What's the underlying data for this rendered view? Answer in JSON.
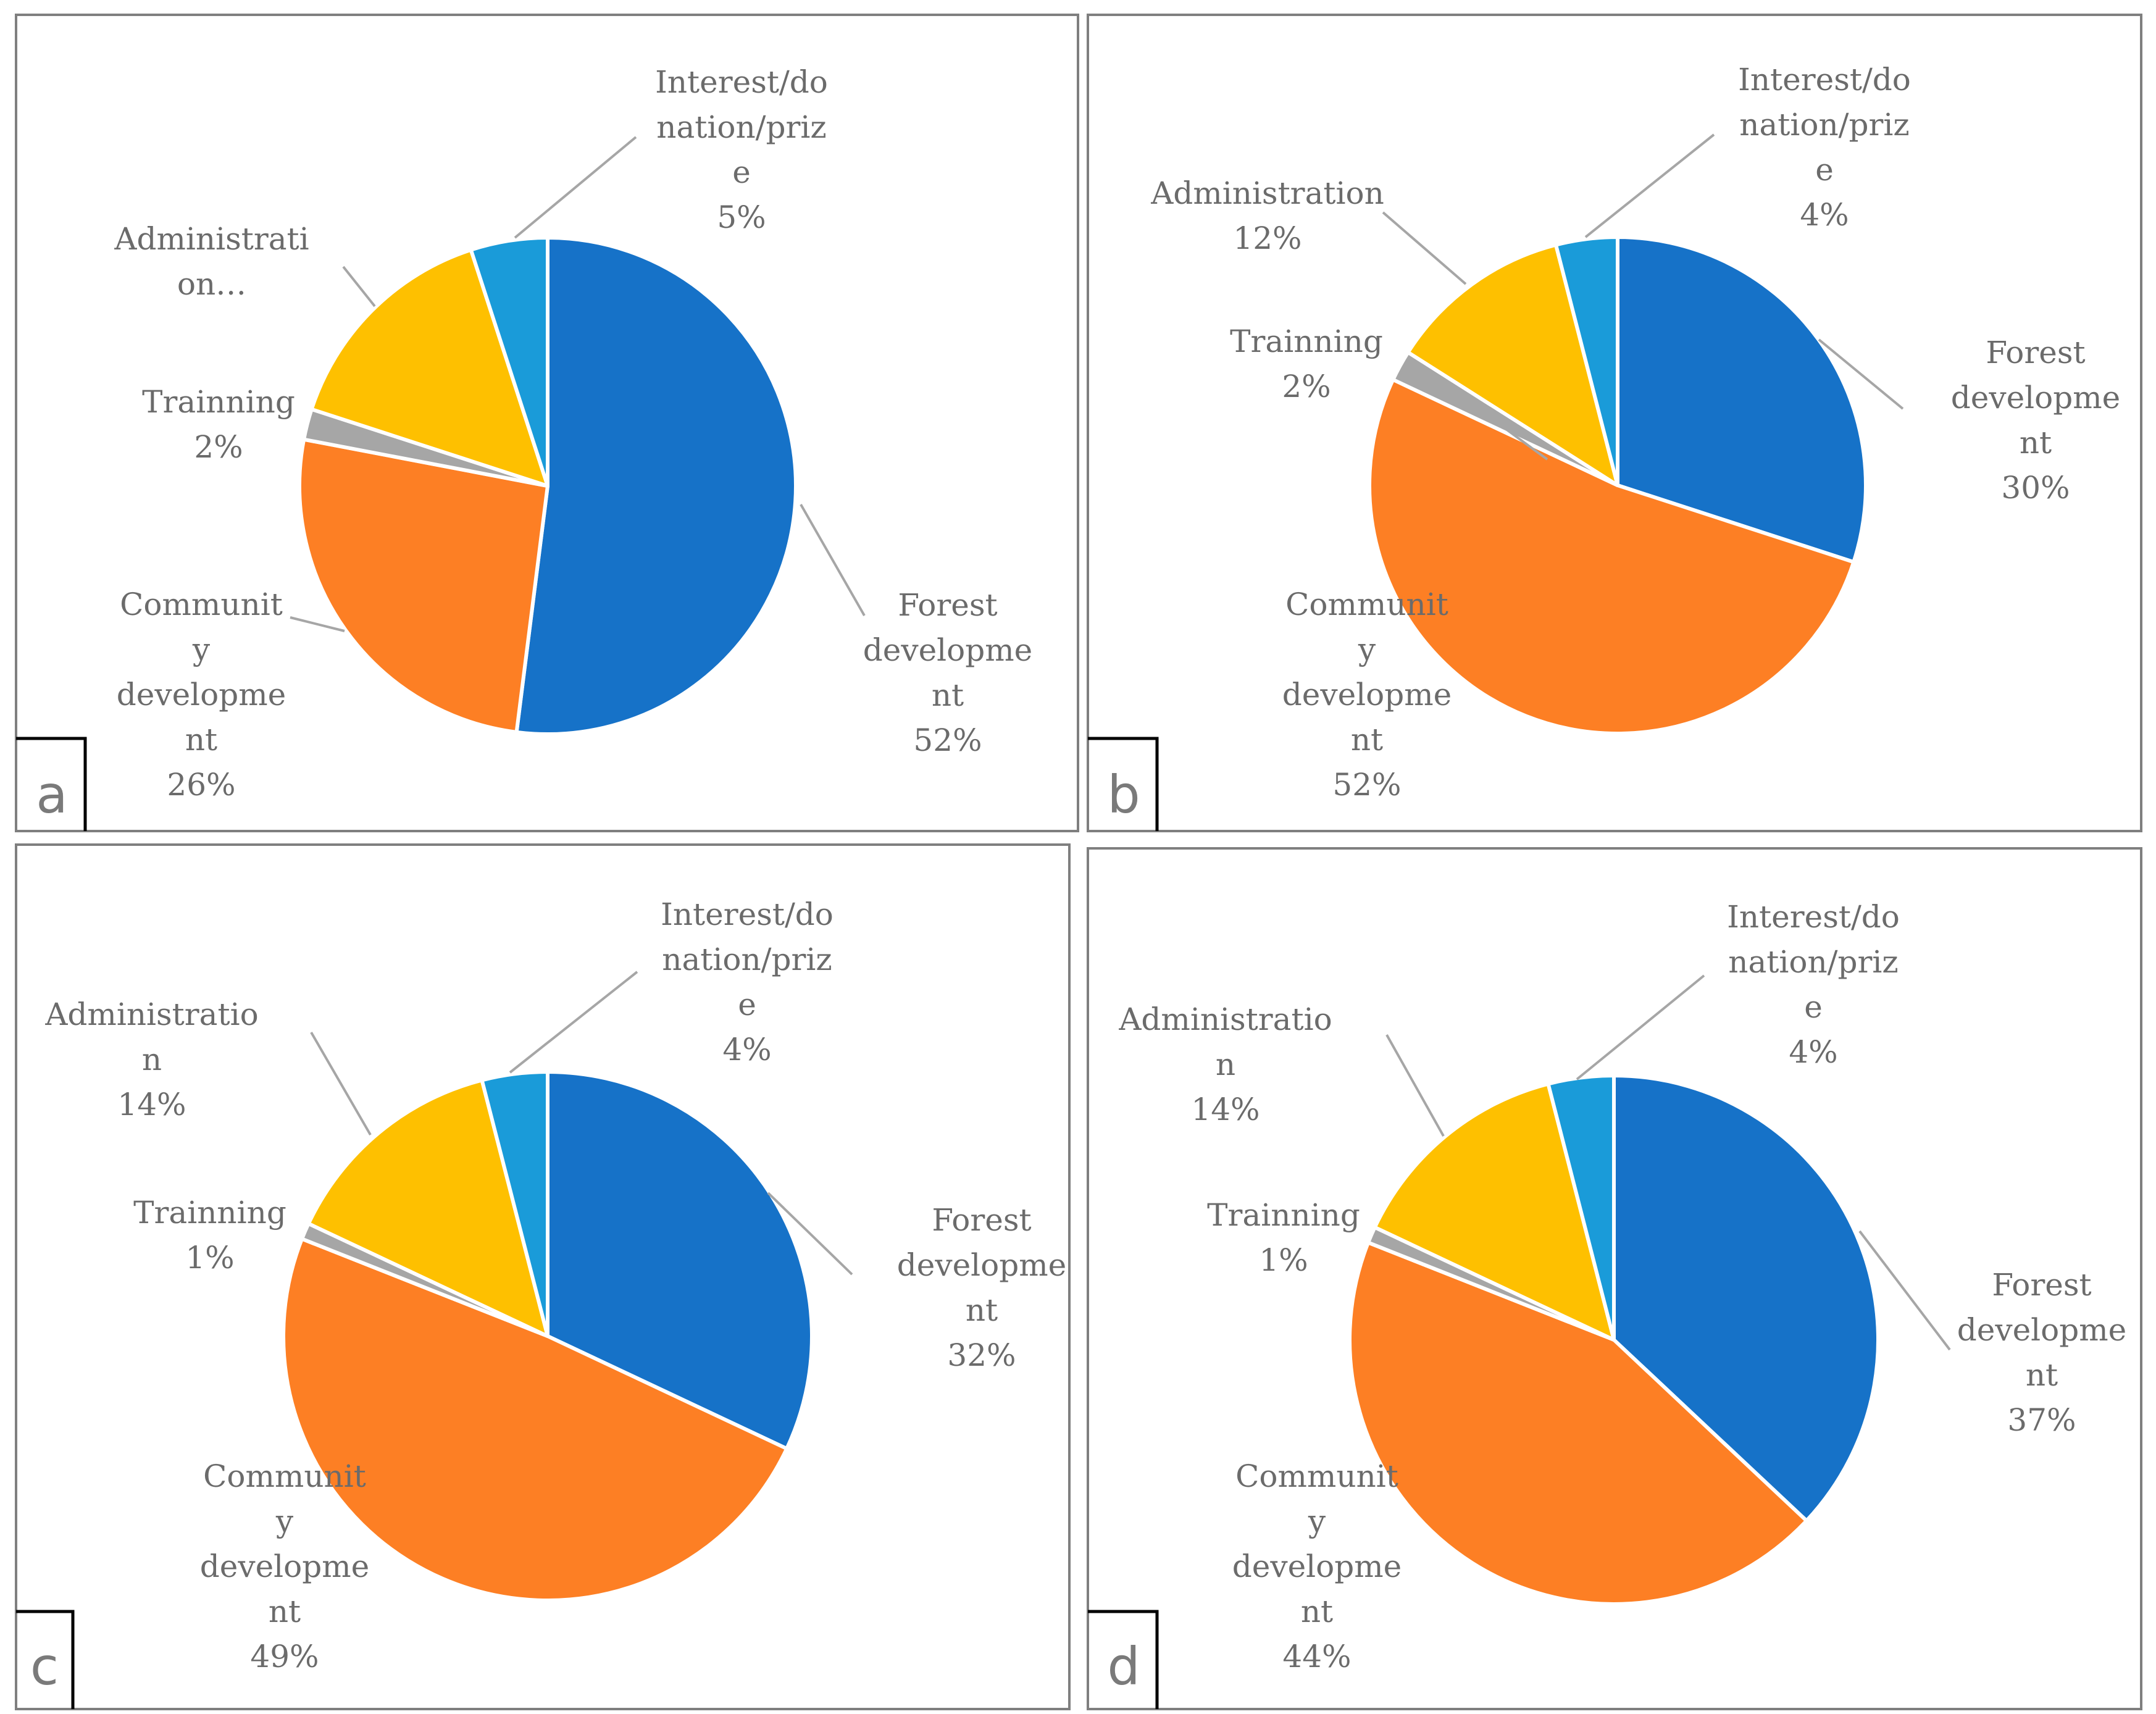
{
  "colors": {
    "forest": "#1672C8",
    "community": "#FD7F24",
    "training": "#A6A6A6",
    "administration": "#FEC000",
    "interest": "#1A9BD9",
    "label_text": "#6b6b6b",
    "leader": "#a6a6a6",
    "frame": "#7f7f7f"
  },
  "chart_data": [
    {
      "type": "pie",
      "panel": "a",
      "start": "12 o'clock, clockwise",
      "slices": [
        {
          "key": "forest",
          "name": "Forest development",
          "value": 52,
          "label_lines": [
            "Forest",
            "developme",
            "nt",
            "52%"
          ]
        },
        {
          "key": "community",
          "name": "Community development",
          "value": 26,
          "label_lines": [
            "Communit",
            "y",
            "developme",
            "nt",
            "26%"
          ]
        },
        {
          "key": "training",
          "name": "Trainning",
          "value": 2,
          "label_lines": [
            "Trainning",
            "2%"
          ]
        },
        {
          "key": "administration",
          "name": "Administration",
          "value": 15,
          "label_lines": [
            "Administrati",
            "on…"
          ]
        },
        {
          "key": "interest",
          "name": "Interest/donation/prize",
          "value": 5,
          "label_lines": [
            "Interest/do",
            "nation/priz",
            "e",
            "5%"
          ]
        }
      ]
    },
    {
      "type": "pie",
      "panel": "b",
      "start": "12 o'clock, clockwise",
      "slices": [
        {
          "key": "forest",
          "name": "Forest development",
          "value": 30,
          "label_lines": [
            "Forest",
            "developme",
            "nt",
            "30%"
          ]
        },
        {
          "key": "community",
          "name": "Community development",
          "value": 52,
          "label_lines": [
            "Communit",
            "y",
            "developme",
            "nt",
            "52%"
          ]
        },
        {
          "key": "training",
          "name": "Trainning",
          "value": 2,
          "label_lines": [
            "Trainning",
            "2%"
          ]
        },
        {
          "key": "administration",
          "name": "Administration",
          "value": 12,
          "label_lines": [
            "Administration",
            "12%"
          ]
        },
        {
          "key": "interest",
          "name": "Interest/donation/prize",
          "value": 4,
          "label_lines": [
            "Interest/do",
            "nation/priz",
            "e",
            "4%"
          ]
        }
      ]
    },
    {
      "type": "pie",
      "panel": "c",
      "start": "12 o'clock, clockwise",
      "slices": [
        {
          "key": "forest",
          "name": "Forest development",
          "value": 32,
          "label_lines": [
            "Forest",
            "developme",
            "nt",
            "32%"
          ]
        },
        {
          "key": "community",
          "name": "Community development",
          "value": 49,
          "label_lines": [
            "Communit",
            "y",
            "developme",
            "nt",
            "49%"
          ]
        },
        {
          "key": "training",
          "name": "Trainning",
          "value": 1,
          "label_lines": [
            "Trainning",
            "1%"
          ]
        },
        {
          "key": "administration",
          "name": "Administration",
          "value": 14,
          "label_lines": [
            "Administratio",
            "n",
            "14%"
          ]
        },
        {
          "key": "interest",
          "name": "Interest/donation/prize",
          "value": 4,
          "label_lines": [
            "Interest/do",
            "nation/priz",
            "e",
            "4%"
          ]
        }
      ]
    },
    {
      "type": "pie",
      "panel": "d",
      "start": "12 o'clock, clockwise",
      "slices": [
        {
          "key": "forest",
          "name": "Forest development",
          "value": 37,
          "label_lines": [
            "Forest",
            "developme",
            "nt",
            "37%"
          ]
        },
        {
          "key": "community",
          "name": "Community development",
          "value": 44,
          "label_lines": [
            "Communit",
            "y",
            "developme",
            "nt",
            "44%"
          ]
        },
        {
          "key": "training",
          "name": "Trainning",
          "value": 1,
          "label_lines": [
            "Trainning",
            "1%"
          ]
        },
        {
          "key": "administration",
          "name": "Administration",
          "value": 14,
          "label_lines": [
            "Administratio",
            "n",
            "14%"
          ]
        },
        {
          "key": "interest",
          "name": "Interest/donation/prize",
          "value": 4,
          "label_lines": [
            "Interest/do",
            "nation/priz",
            "e",
            "4%"
          ]
        }
      ]
    }
  ]
}
